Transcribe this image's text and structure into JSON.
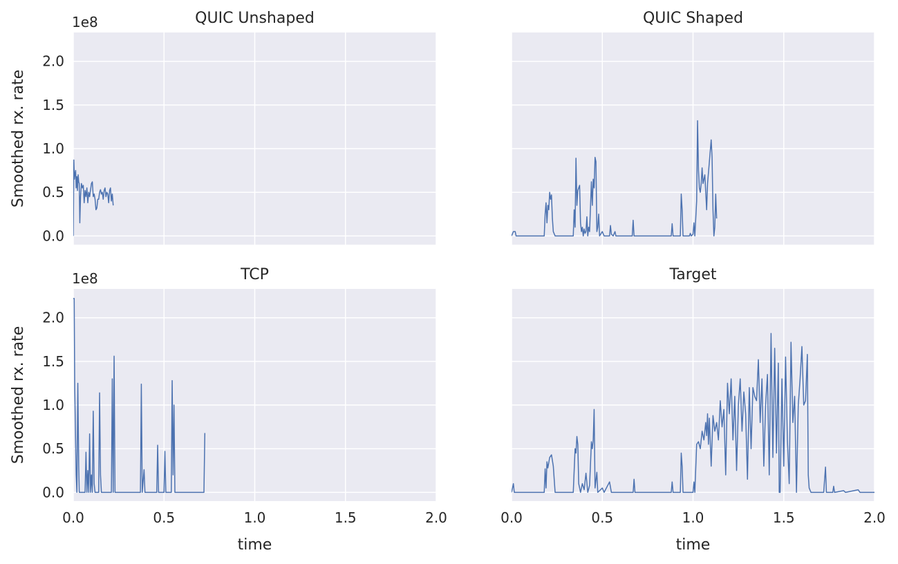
{
  "chart_data": [
    {
      "type": "line",
      "title": "QUIC Unshaped",
      "ylabel": "Smoothed rx. rate",
      "offset_text": "1e8",
      "color": "#4c72b0",
      "grid": true,
      "xlim": [
        0,
        2
      ],
      "ylim": [
        -0.1,
        2.33
      ],
      "xticks": [
        0,
        0.5,
        1,
        1.5,
        2
      ],
      "xtick_labels": false,
      "yticks": [
        {
          "value": 0,
          "label": "0.0"
        },
        0.5,
        {
          "value": 1,
          "label": "1.0"
        },
        1.5,
        {
          "value": 2,
          "label": "2.0"
        }
      ],
      "ytick_labels": true,
      "x": [
        0,
        0.003,
        0.006,
        0.01,
        0.013,
        0.016,
        0.02,
        0.023,
        0.027,
        0.03,
        0.033,
        0.036,
        0.04,
        0.045,
        0.05,
        0.055,
        0.06,
        0.065,
        0.07,
        0.075,
        0.08,
        0.085,
        0.09,
        0.1,
        0.105,
        0.11,
        0.115,
        0.12,
        0.125,
        0.13,
        0.135,
        0.14,
        0.145,
        0.15,
        0.155,
        0.16,
        0.165,
        0.17,
        0.175,
        0.18,
        0.185,
        0.19,
        0.195,
        0.2,
        0.205,
        0.21,
        0.215,
        0.22
      ],
      "values": [
        0,
        0.87,
        0.65,
        0.72,
        0.75,
        0.55,
        0.68,
        0.52,
        0.7,
        0.62,
        0.6,
        0.15,
        0.45,
        0.6,
        0.55,
        0.58,
        0.38,
        0.52,
        0.45,
        0.55,
        0.38,
        0.5,
        0.45,
        0.6,
        0.62,
        0.45,
        0.48,
        0.42,
        0.3,
        0.32,
        0.42,
        0.42,
        0.5,
        0.53,
        0.48,
        0.5,
        0.42,
        0.52,
        0.55,
        0.45,
        0.5,
        0.48,
        0.38,
        0.52,
        0.55,
        0.4,
        0.48,
        0.35
      ]
    },
    {
      "type": "line",
      "title": "QUIC Shaped",
      "color": "#4c72b0",
      "grid": true,
      "xlim": [
        0,
        2
      ],
      "ylim": [
        -0.1,
        2.33
      ],
      "xticks": [
        0,
        0.5,
        1,
        1.5,
        2
      ],
      "xtick_labels": false,
      "yticks": [
        0,
        0.5,
        1,
        1.5,
        2
      ],
      "ytick_labels": false,
      "x": [
        0,
        0.01,
        0.02,
        0.025,
        0.18,
        0.185,
        0.19,
        0.195,
        0.2,
        0.205,
        0.21,
        0.215,
        0.22,
        0.225,
        0.23,
        0.24,
        0.34,
        0.345,
        0.35,
        0.355,
        0.36,
        0.365,
        0.37,
        0.375,
        0.38,
        0.385,
        0.39,
        0.395,
        0.4,
        0.405,
        0.41,
        0.415,
        0.42,
        0.425,
        0.43,
        0.44,
        0.445,
        0.45,
        0.455,
        0.46,
        0.465,
        0.47,
        0.475,
        0.48,
        0.485,
        0.5,
        0.51,
        0.54,
        0.545,
        0.55,
        0.56,
        0.57,
        0.575,
        0.665,
        0.67,
        0.675,
        0.88,
        0.885,
        0.89,
        0.93,
        0.935,
        0.94,
        0.945,
        0.98,
        0.985,
        0.99,
        1.0,
        1.005,
        1.01,
        1.02,
        1.025,
        1.03,
        1.035,
        1.04,
        1.045,
        1.05,
        1.055,
        1.06,
        1.065,
        1.07,
        1.075,
        1.08,
        1.09,
        1.1,
        1.105,
        1.11,
        1.115,
        1.12,
        1.125,
        1.13
      ],
      "values": [
        0,
        0.05,
        0.05,
        0,
        0,
        0.25,
        0.38,
        0.15,
        0.35,
        0.3,
        0.5,
        0.42,
        0.47,
        0.2,
        0.05,
        0,
        0,
        0.3,
        0.1,
        0.89,
        0.35,
        0.52,
        0.55,
        0.58,
        0.15,
        0.05,
        0.1,
        0,
        0.08,
        0.03,
        0.05,
        0.22,
        0,
        0.1,
        0.05,
        0.62,
        0.35,
        0.65,
        0.55,
        0.9,
        0.85,
        0.05,
        0.1,
        0.25,
        0,
        0.05,
        0,
        0,
        0.12,
        0.02,
        0,
        0.05,
        0,
        0,
        0.18,
        0,
        0,
        0.14,
        0,
        0,
        0.48,
        0.3,
        0,
        0,
        0.03,
        0,
        0.02,
        0.15,
        0,
        0.4,
        1.32,
        0.75,
        0.55,
        0.5,
        0.6,
        0.78,
        0.6,
        0.65,
        0.7,
        0.5,
        0.3,
        0.6,
        0.85,
        1.1,
        0.9,
        0.3,
        0,
        0.1,
        0.48,
        0.2
      ]
    },
    {
      "type": "line",
      "title": "TCP",
      "ylabel": "Smoothed rx. rate",
      "xlabel": "time",
      "offset_text": "1e8",
      "color": "#4c72b0",
      "grid": true,
      "xlim": [
        0,
        2
      ],
      "ylim": [
        -0.1,
        2.33
      ],
      "xticks": [
        {
          "value": 0,
          "label": "0.0"
        },
        0.5,
        {
          "value": 1,
          "label": "1.0"
        },
        1.5,
        {
          "value": 2,
          "label": "2.0"
        }
      ],
      "xtick_labels": true,
      "yticks": [
        {
          "value": 0,
          "label": "0.0"
        },
        0.5,
        {
          "value": 1,
          "label": "1.0"
        },
        1.5,
        {
          "value": 2,
          "label": "2.0"
        }
      ],
      "ytick_labels": true,
      "x": [
        0,
        0.005,
        0.008,
        0.012,
        0.016,
        0.02,
        0.025,
        0.03,
        0.033,
        0.065,
        0.07,
        0.075,
        0.08,
        0.085,
        0.09,
        0.095,
        0.1,
        0.105,
        0.11,
        0.115,
        0.12,
        0.14,
        0.145,
        0.15,
        0.155,
        0.21,
        0.215,
        0.22,
        0.225,
        0.23,
        0.37,
        0.375,
        0.38,
        0.39,
        0.395,
        0.46,
        0.465,
        0.47,
        0.5,
        0.505,
        0.51,
        0.54,
        0.545,
        0.55,
        0.555,
        0.56,
        0.72,
        0.725
      ],
      "values": [
        2.22,
        2.22,
        1.2,
        0.7,
        0.2,
        0,
        1.25,
        0.3,
        0,
        0,
        0.46,
        0,
        0.25,
        0,
        0.67,
        0,
        0.2,
        0,
        0.93,
        0.1,
        0,
        0,
        1.14,
        0.2,
        0,
        0,
        1.3,
        0,
        1.56,
        0,
        0,
        1.24,
        0,
        0.26,
        0,
        0,
        0.54,
        0,
        0,
        0.47,
        0,
        0,
        1.28,
        0.2,
        1.0,
        0,
        0,
        0.68
      ]
    },
    {
      "type": "line",
      "title": "Target",
      "xlabel": "time",
      "color": "#4c72b0",
      "grid": true,
      "xlim": [
        0,
        2
      ],
      "ylim": [
        -0.1,
        2.33
      ],
      "xticks": [
        {
          "value": 0,
          "label": "0.0"
        },
        0.5,
        {
          "value": 1,
          "label": "1.0"
        },
        1.5,
        {
          "value": 2,
          "label": "2.0"
        }
      ],
      "xtick_labels": true,
      "yticks": [
        0,
        0.5,
        1,
        1.5,
        2
      ],
      "ytick_labels": false,
      "x": [
        0,
        0.01,
        0.015,
        0.18,
        0.185,
        0.19,
        0.195,
        0.2,
        0.21,
        0.22,
        0.23,
        0.24,
        0.34,
        0.35,
        0.355,
        0.36,
        0.365,
        0.37,
        0.38,
        0.39,
        0.4,
        0.41,
        0.42,
        0.43,
        0.44,
        0.445,
        0.45,
        0.455,
        0.46,
        0.47,
        0.475,
        0.5,
        0.51,
        0.54,
        0.55,
        0.67,
        0.675,
        0.68,
        0.88,
        0.885,
        0.89,
        0.93,
        0.935,
        0.94,
        0.945,
        1.0,
        1.005,
        1.01,
        1.02,
        1.03,
        1.04,
        1.05,
        1.06,
        1.07,
        1.075,
        1.08,
        1.085,
        1.09,
        1.1,
        1.11,
        1.12,
        1.13,
        1.14,
        1.15,
        1.16,
        1.17,
        1.18,
        1.19,
        1.2,
        1.21,
        1.22,
        1.23,
        1.24,
        1.25,
        1.26,
        1.27,
        1.28,
        1.29,
        1.3,
        1.31,
        1.32,
        1.33,
        1.34,
        1.35,
        1.36,
        1.37,
        1.38,
        1.39,
        1.4,
        1.41,
        1.42,
        1.43,
        1.44,
        1.45,
        1.46,
        1.47,
        1.475,
        1.48,
        1.49,
        1.5,
        1.51,
        1.52,
        1.53,
        1.54,
        1.55,
        1.56,
        1.57,
        1.58,
        1.59,
        1.6,
        1.61,
        1.62,
        1.63,
        1.635,
        1.64,
        1.65,
        1.72,
        1.73,
        1.735,
        1.77,
        1.775,
        1.78,
        1.83,
        1.84,
        1.91,
        1.92,
        2.0
      ],
      "values": [
        0,
        0.1,
        0,
        0,
        0.27,
        0.05,
        0.35,
        0.28,
        0.4,
        0.43,
        0.3,
        0,
        0,
        0.5,
        0.45,
        0.64,
        0.55,
        0.1,
        0,
        0.1,
        0.03,
        0.22,
        0,
        0.08,
        0.58,
        0.5,
        0.6,
        0.95,
        0.05,
        0.23,
        0,
        0.05,
        0,
        0.12,
        0,
        0,
        0.15,
        0,
        0,
        0.12,
        0,
        0,
        0.45,
        0.3,
        0,
        0,
        0.12,
        0,
        0.55,
        0.58,
        0.5,
        0.7,
        0.6,
        0.8,
        0.65,
        0.9,
        0.55,
        0.85,
        0.3,
        0.88,
        0.7,
        0.8,
        0.6,
        1.05,
        0.75,
        0.95,
        0.2,
        1.25,
        0.9,
        1.3,
        0.6,
        1.1,
        0.25,
        1.0,
        1.3,
        0.7,
        1.15,
        0.9,
        0.15,
        1.2,
        0.5,
        1.2,
        1.1,
        1.05,
        1.52,
        0.8,
        1.3,
        0.3,
        1.0,
        1.35,
        0.2,
        1.82,
        0.4,
        1.65,
        0.45,
        1.48,
        0,
        0,
        1.3,
        0.3,
        1.55,
        0.6,
        0.1,
        1.72,
        0.8,
        1.1,
        0,
        1.0,
        1.3,
        1.67,
        1.0,
        1.05,
        1.58,
        0.2,
        0.05,
        0,
        0,
        0.29,
        0,
        0,
        0.07,
        0,
        0.02,
        0,
        0.03,
        0,
        0
      ]
    }
  ]
}
